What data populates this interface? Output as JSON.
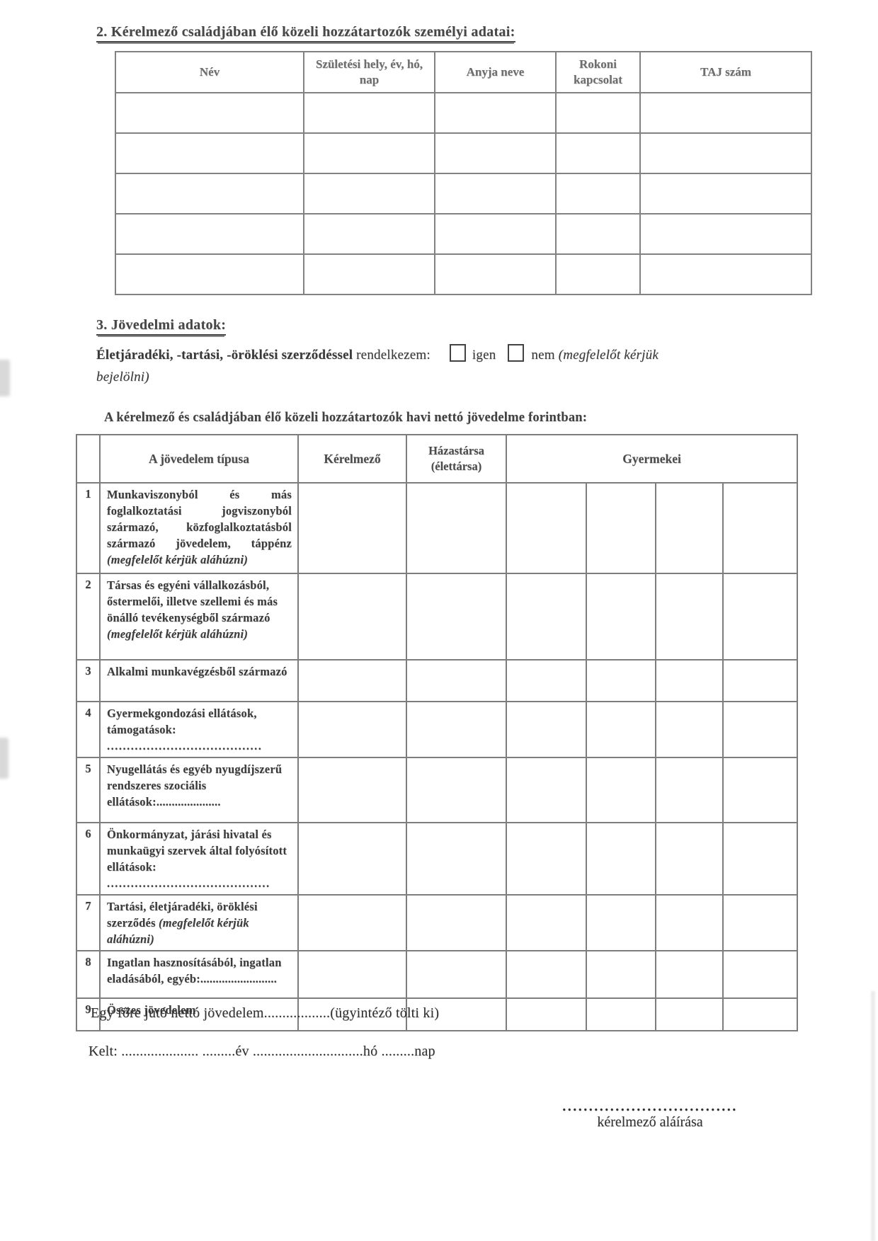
{
  "section2": {
    "heading": "2. Kérelmező családjában élő közeli hozzátartozók személyi adatai:",
    "table": {
      "headers": [
        "Név",
        "Születési hely, év, hó, nap",
        "Anyja neve",
        "Rokoni kapcsolat",
        "TAJ szám"
      ],
      "empty_row_count": 5
    }
  },
  "section3": {
    "heading": "3. Jövedelmi adatok:",
    "declaration_bold": "Életjáradéki, -tartási, -öröklési szerződéssel",
    "declaration_rest": "rendelkezem:",
    "option_yes": "igen",
    "option_no": "nem",
    "note": "(megfelelőt kérjük bejelölni)"
  },
  "income": {
    "title": "A kérelmező és családjában élő közeli hozzátartozók havi nettó jövedelme forintban:",
    "headers": {
      "type": "A jövedelem típusa",
      "applicant": "Kérelmező",
      "spouse": "Házastársa (élettársa)",
      "children": "Gyermekei"
    },
    "children_columns": 4,
    "rows": [
      {
        "num": "1",
        "text": "Munkaviszonyból és más foglalkoztatási jogviszonyból származó, közfoglalkoztatásból származó jövedelem, táppénz",
        "italic": "(megfelelőt kérjük aláhúzni)"
      },
      {
        "num": "2",
        "text": "Társas és egyéni vállalkozásból, őstermelői, illetve szellemi és más önálló tevékenységből származó",
        "italic": "(megfelelőt kérjük aláhúzni)"
      },
      {
        "num": "3",
        "text": "Alkalmi munkavégzésből származó"
      },
      {
        "num": "4",
        "text": "Gyermekgondozási ellátások, támogatások:",
        "dots": "......................................."
      },
      {
        "num": "5",
        "text": "Nyugellátás és egyéb nyugdíjszerű rendszeres szociális ellátások:....................."
      },
      {
        "num": "6",
        "text": "Önkormányzat, járási hivatal és munkaügyi szervek által folyósított ellátások:",
        "dots": "........................................."
      },
      {
        "num": "7",
        "text": "Tartási, életjáradéki, öröklési szerződés",
        "italic": "(megfelelőt kérjük aláhúzni)"
      },
      {
        "num": "8",
        "text": "Ingatlan hasznosításából, ingatlan eladásából, egyéb:........................."
      },
      {
        "num": "9",
        "text": "Összes jövedelem"
      }
    ]
  },
  "footer": {
    "per_capita_line": "Egy főre jutó nettó jövedelem..................(ügyintéző tölti ki)",
    "date_line": "Kelt: ..................... .........év ..............................hó .........nap",
    "signature_dots": ".................................",
    "signature_label": "kérelmező aláírása"
  }
}
